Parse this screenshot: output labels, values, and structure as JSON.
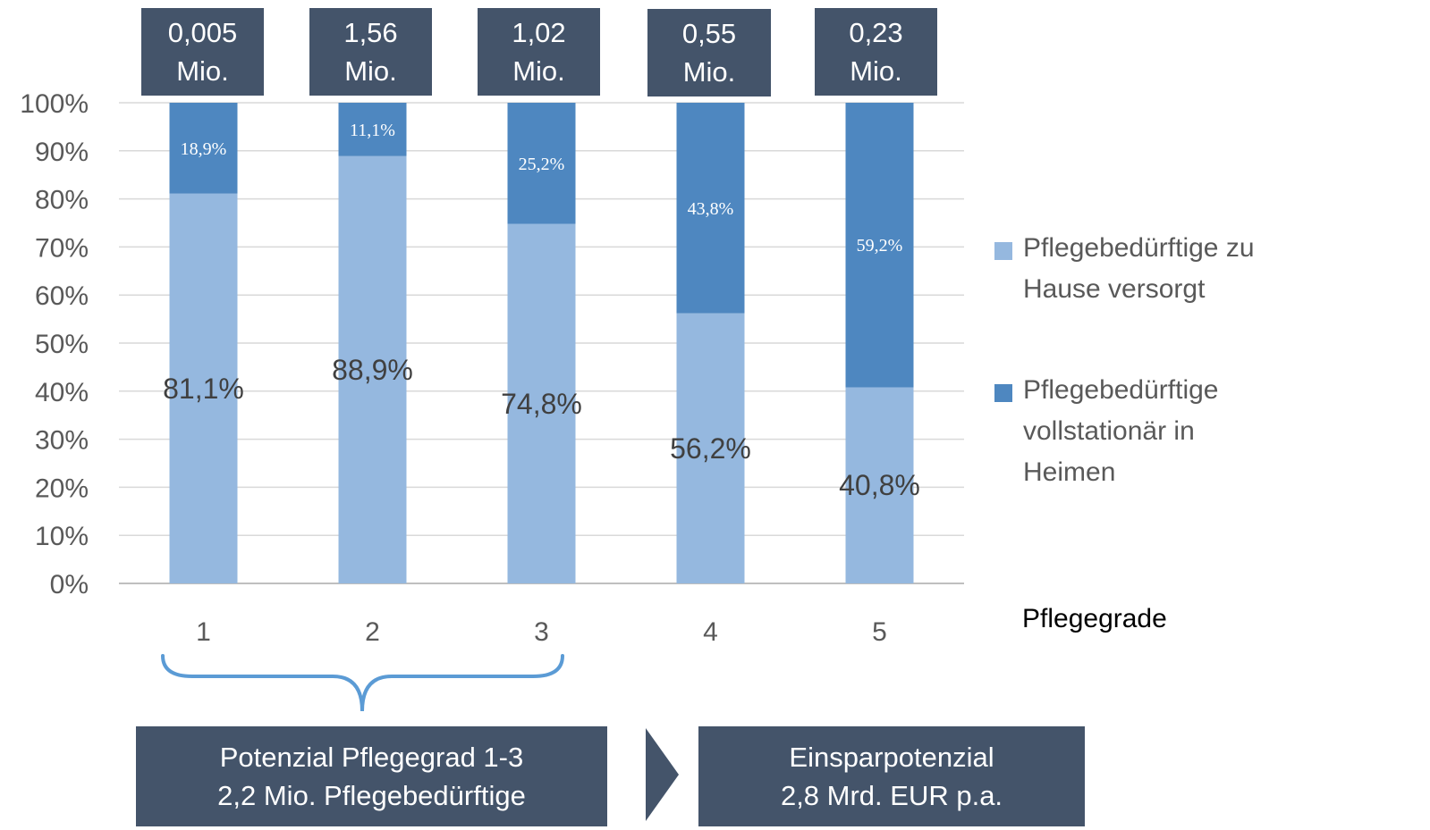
{
  "chart_data": {
    "type": "bar",
    "stacked": true,
    "categories": [
      "1",
      "2",
      "3",
      "4",
      "5"
    ],
    "series": [
      {
        "name": "Pflegebedürftige zu Hause versorgt",
        "color": "#95b8df",
        "values": [
          81.1,
          88.9,
          74.8,
          56.2,
          40.8
        ],
        "labels": [
          "81,1%",
          "88,9%",
          "74,8%",
          "56,2%",
          "40,8%"
        ]
      },
      {
        "name": "Pflegebedürftige vollstationär in Heimen",
        "color": "#4e87c0",
        "values": [
          18.9,
          11.1,
          25.2,
          43.8,
          59.2
        ],
        "labels": [
          "18,9%",
          "11,1%",
          "25,2%",
          "43,8%",
          "59,2%"
        ]
      }
    ],
    "ylim": [
      0,
      100
    ],
    "yticks": [
      "0%",
      "10%",
      "20%",
      "30%",
      "40%",
      "50%",
      "60%",
      "70%",
      "80%",
      "90%",
      "100%"
    ],
    "xlabel": "Pflegegrade",
    "grid": true,
    "legend_position": "right",
    "totals": [
      {
        "value": "0,005",
        "unit": "Mio."
      },
      {
        "value": "1,56",
        "unit": "Mio."
      },
      {
        "value": "1,02",
        "unit": "Mio."
      },
      {
        "value": "0,55",
        "unit": "Mio."
      },
      {
        "value": "0,23",
        "unit": "Mio."
      }
    ]
  },
  "legend": {
    "home": {
      "line1": "Pflegebedürftige zu",
      "line2": "Hause versorgt"
    },
    "facility": {
      "line1": "Pflegebedürftige",
      "line2": "vollstationär in",
      "line3": "Heimen"
    }
  },
  "summary": {
    "potential": {
      "line1": "Potenzial Pflegegrad 1-3",
      "line2": "2,2 Mio. Pflegebedürftige"
    },
    "savings": {
      "line1": "Einsparpotenzial",
      "line2": "2,8 Mrd. EUR p.a."
    }
  },
  "colors": {
    "box": "#44546a",
    "brace": "#5b9bd5",
    "grid": "#d9d9d9",
    "axis": "#bfbfbf"
  }
}
